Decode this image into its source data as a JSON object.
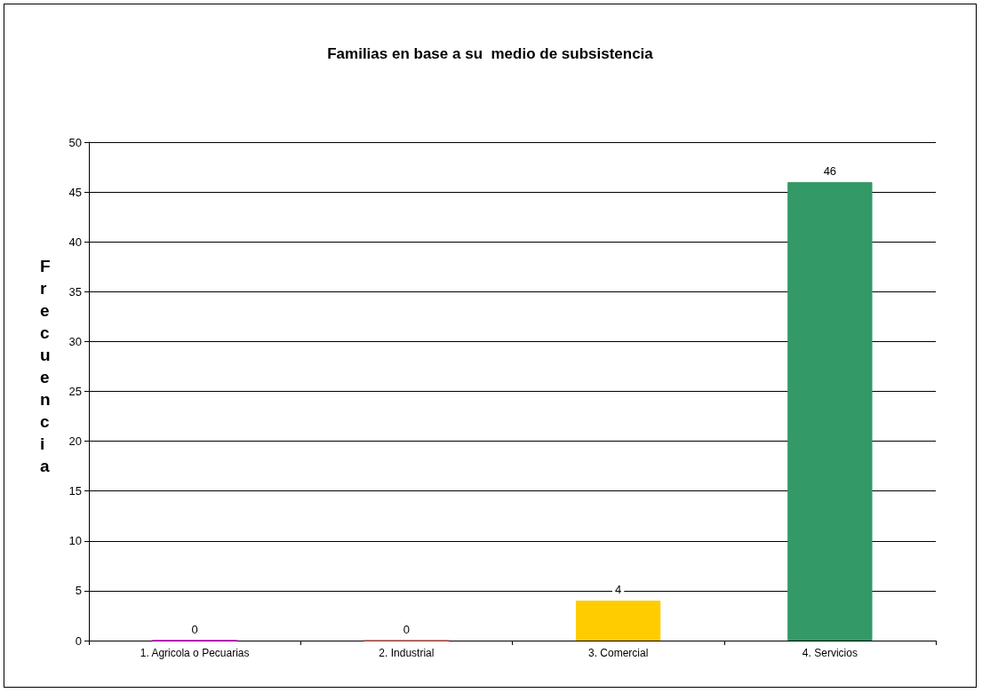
{
  "chart_data": {
    "type": "bar",
    "title": "Familias en base a su  medio de subsistencia",
    "ylabel": "Frecuencia",
    "categories": [
      "1. Agricola o Pecuarias",
      "2. Industrial",
      "3. Comercial",
      "4. Servicios"
    ],
    "values": [
      0,
      0,
      4,
      46
    ],
    "colors": [
      "#c000c0",
      "#c0605a",
      "#ffcc00",
      "#339966"
    ],
    "ylim": [
      0,
      50
    ],
    "yticks": [
      0,
      5,
      10,
      15,
      20,
      25,
      30,
      35,
      40,
      45,
      50
    ],
    "grid": "y",
    "data_labels": true
  }
}
